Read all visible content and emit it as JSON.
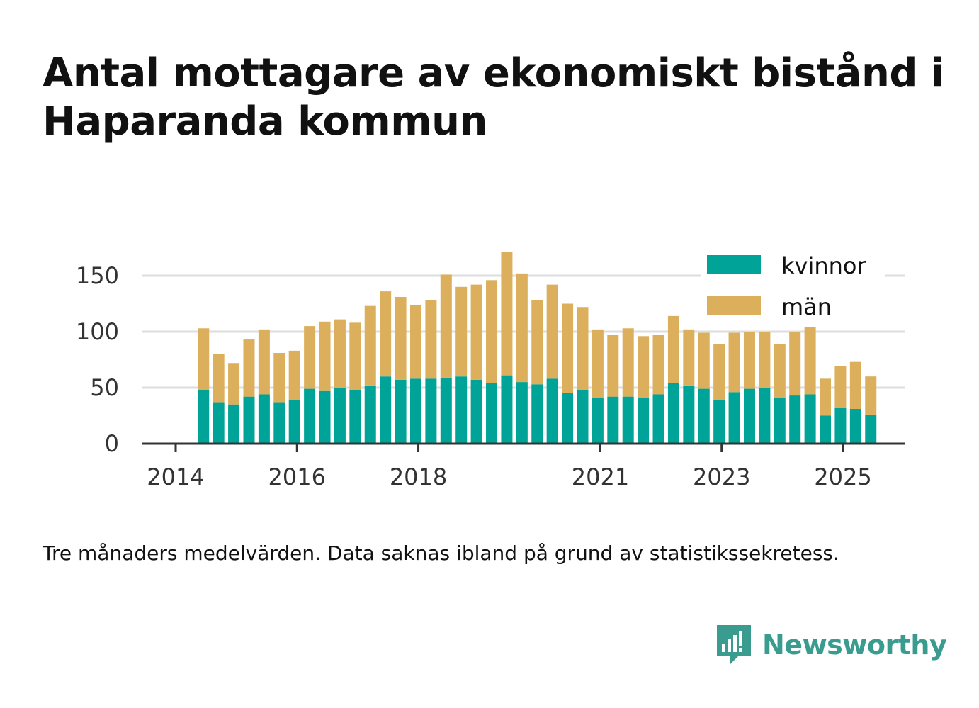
{
  "title": "Antal mottagare av ekonomiskt bistånd i Haparanda kommun",
  "note": "Tre månaders medelvärden. Data saknas ibland på grund av statistikssekretess.",
  "brand": {
    "name": "Newsworthy",
    "icon": "newsworthy-chart-bubble-icon",
    "color": "#3a9c8f"
  },
  "colors": {
    "kvinnor": "#00a397",
    "man": "#dcaf5c",
    "axis": "#333333",
    "grid": "#dddddd"
  },
  "chart_data": {
    "type": "bar",
    "stacked": true,
    "x": [
      "2014-06",
      "2014-09",
      "2014-12",
      "2015-03",
      "2015-06",
      "2015-09",
      "2015-12",
      "2016-03",
      "2016-06",
      "2016-09",
      "2016-12",
      "2017-03",
      "2017-06",
      "2017-09",
      "2017-12",
      "2018-03",
      "2018-06",
      "2018-09",
      "2018-12",
      "2019-03",
      "2019-06",
      "2019-09",
      "2019-12",
      "2020-03",
      "2020-06",
      "2020-09",
      "2020-12",
      "2021-03",
      "2021-06",
      "2021-09",
      "2021-12",
      "2022-03",
      "2022-06",
      "2022-09",
      "2022-12",
      "2023-03",
      "2023-06",
      "2023-09",
      "2023-12",
      "2024-03",
      "2024-06",
      "2024-09",
      "2024-12",
      "2025-03",
      "2025-06"
    ],
    "series": [
      {
        "name": "kvinnor",
        "color": "#00a397",
        "values": [
          48,
          37,
          35,
          42,
          44,
          37,
          39,
          49,
          47,
          50,
          48,
          52,
          60,
          57,
          58,
          58,
          59,
          60,
          57,
          54,
          61,
          55,
          53,
          58,
          45,
          48,
          41,
          42,
          42,
          41,
          44,
          54,
          52,
          49,
          39,
          46,
          49,
          50,
          41,
          43,
          44,
          25,
          32,
          31,
          26
        ]
      },
      {
        "name": "män",
        "color": "#dcaf5c",
        "values": [
          55,
          43,
          37,
          51,
          58,
          44,
          44,
          56,
          62,
          61,
          60,
          71,
          76,
          74,
          66,
          70,
          92,
          80,
          85,
          92,
          110,
          97,
          75,
          84,
          80,
          74,
          61,
          55,
          61,
          55,
          53,
          60,
          50,
          50,
          50,
          53,
          51,
          50,
          48,
          57,
          60,
          33,
          37,
          42,
          34
        ]
      }
    ],
    "x_ticks": [
      "2014",
      "2016",
      "2018",
      "2021",
      "2023",
      "2025"
    ],
    "y_ticks": [
      "0",
      "50",
      "100",
      "150"
    ],
    "ylim": [
      0,
      175
    ],
    "grid": true,
    "legend_position": "top-right"
  }
}
